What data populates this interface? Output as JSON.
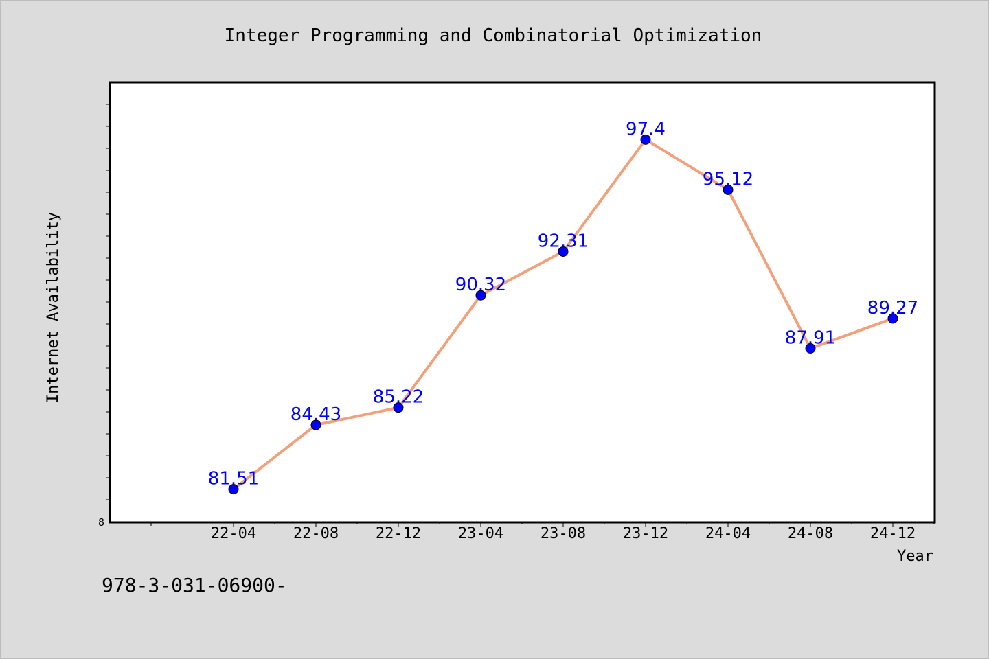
{
  "chart_data": {
    "type": "line",
    "title": "Integer Programming and Combinatorial Optimization",
    "xlabel": "Year",
    "ylabel": "Internet Availability",
    "categories": [
      "22-04",
      "22-08",
      "22-12",
      "23-04",
      "23-08",
      "23-12",
      "24-04",
      "24-08",
      "24-12"
    ],
    "series": [
      {
        "values": [
          81.51,
          84.43,
          85.22,
          90.32,
          92.31,
          97.4,
          95.12,
          87.91,
          89.27
        ],
        "data_labels": [
          "81.51",
          "84.43",
          "85.22",
          "90.32",
          "92.31",
          "97.4",
          "95.12",
          "87.91",
          "89.27"
        ]
      }
    ],
    "y_tick_labels": [
      "8"
    ],
    "ylim": [
      80,
      100
    ],
    "grid": false,
    "colors": {
      "line": "#f4a07a",
      "marker": "#0000ff",
      "data_label": "#0000ff",
      "axis": "#000000",
      "background": "#dcdcdc",
      "plot_area": "#ffffff"
    }
  },
  "footnote": "978-3-031-06900-"
}
